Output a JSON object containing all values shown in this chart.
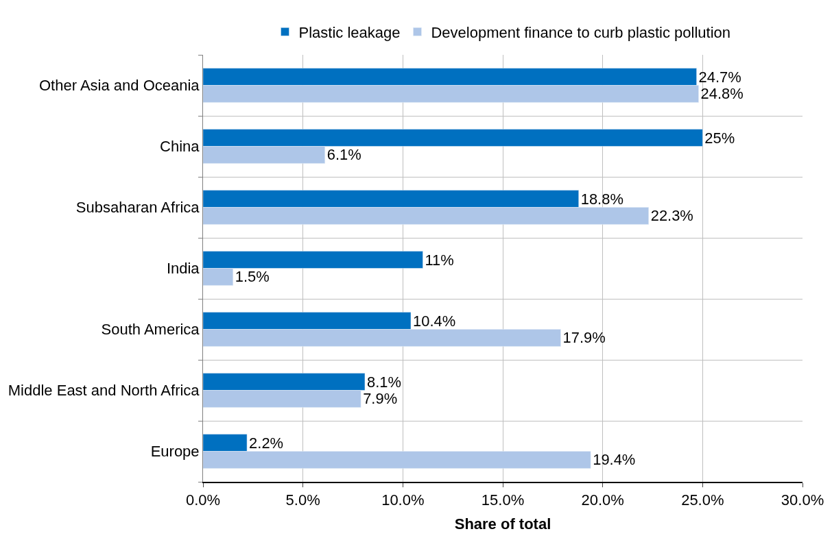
{
  "chart_data": {
    "type": "bar",
    "orientation": "horizontal",
    "xlabel": "Share of total",
    "categories": [
      "Other Asia and Oceania",
      "China",
      "Subsaharan Africa",
      "India",
      "South America",
      "Middle East and North Africa",
      "Europe"
    ],
    "series": [
      {
        "name": "Plastic leakage",
        "color": "#0070c0",
        "values": [
          24.7,
          25,
          18.8,
          11,
          10.4,
          8.1,
          2.2
        ],
        "value_labels": [
          "24.7%",
          "25%",
          "18.8%",
          "11%",
          "10.4%",
          "8.1%",
          "2.2%"
        ]
      },
      {
        "name": "Development finance to curb plastic pollution",
        "color": "#aec6e8",
        "values": [
          24.8,
          6.1,
          22.3,
          1.5,
          17.9,
          7.9,
          19.4
        ],
        "value_labels": [
          "24.8%",
          "6.1%",
          "22.3%",
          "1.5%",
          "17.9%",
          "7.9%",
          "19.4%"
        ]
      }
    ],
    "xlim": [
      0,
      30
    ],
    "xticks": [
      {
        "value": 0,
        "label": "0.0%"
      },
      {
        "value": 5,
        "label": "5.0%"
      },
      {
        "value": 10,
        "label": "10.0%"
      },
      {
        "value": 15,
        "label": "15.0%"
      },
      {
        "value": 20,
        "label": "20.0%"
      },
      {
        "value": 25,
        "label": "25.0%"
      },
      {
        "value": 30,
        "label": "30.0%"
      }
    ],
    "grid": true,
    "legend": "top"
  }
}
